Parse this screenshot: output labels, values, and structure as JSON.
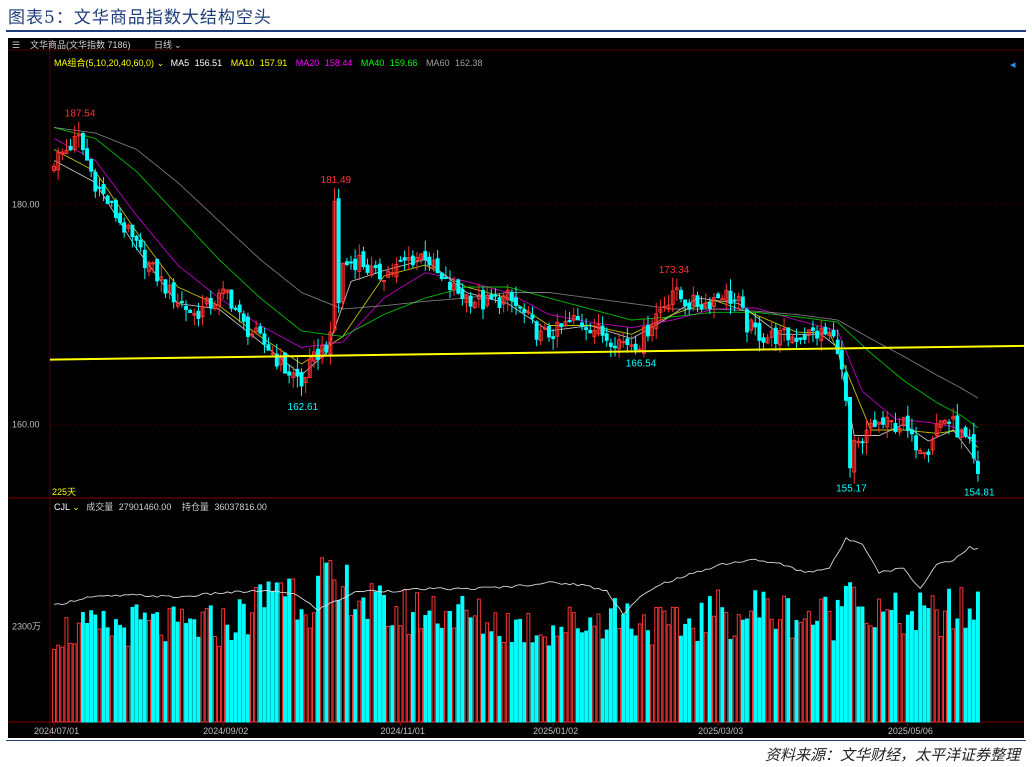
{
  "figure_title": "图表5：文华商品指数大结构空头",
  "source_note": "资料来源：文华财经，太平洋证券整理",
  "header": {
    "instrument": "文华商品(文华指数 7186)",
    "period": "日线"
  },
  "ma_legend": {
    "group_label": "MA组合(5,10,20,40,60,0)",
    "items": [
      {
        "label": "MA5",
        "value": "156.51",
        "color": "#ffffff"
      },
      {
        "label": "MA10",
        "value": "157.91",
        "color": "#ffff00"
      },
      {
        "label": "MA20",
        "value": "158.44",
        "color": "#ff00ff"
      },
      {
        "label": "MA40",
        "value": "159.66",
        "color": "#00ff00"
      },
      {
        "label": "MA60",
        "value": "162.38",
        "color": "#a0a0a0"
      }
    ]
  },
  "volume_legend": {
    "label": "CJL",
    "vol_label": "成交量",
    "vol_value": "27901460.00",
    "oi_label": "持仓量",
    "oi_value": "36037816.00"
  },
  "days_label": "225天",
  "colors": {
    "up": "#ff3232",
    "down": "#00ffff",
    "support_line": "#ffff00",
    "high_label": "#ff3232",
    "low_label": "#00ffff",
    "axis_text": "#c0c0c0"
  },
  "chart_data": [
    {
      "type": "candlestick",
      "y_ticks": [
        "180.00",
        "160.00"
      ],
      "y_tick_values": [
        180,
        160
      ],
      "ylim": [
        153.5,
        191.5
      ],
      "x_tick_labels": [
        "2024/07/01",
        "2024/09/02",
        "2024/11/01",
        "2025/01/02",
        "2025/03/03",
        "2025/05/06"
      ],
      "x_tick_index": [
        0,
        41,
        84,
        121,
        161,
        207
      ],
      "n_bars": 225,
      "annotations": [
        {
          "text": "187.54",
          "index": 6,
          "value": 187.54,
          "kind": "high"
        },
        {
          "text": "181.49",
          "index": 68,
          "value": 181.49,
          "kind": "high"
        },
        {
          "text": "173.34",
          "index": 150,
          "value": 173.34,
          "kind": "high"
        },
        {
          "text": "162.61",
          "index": 60,
          "value": 162.61,
          "kind": "low"
        },
        {
          "text": "166.54",
          "index": 142,
          "value": 166.54,
          "kind": "low"
        },
        {
          "text": "155.17",
          "index": 193,
          "value": 155.17,
          "kind": "low"
        },
        {
          "text": "154.81",
          "index": 224,
          "value": 154.81,
          "kind": "low"
        }
      ],
      "close_anchors": [
        [
          0,
          184
        ],
        [
          6,
          186
        ],
        [
          10,
          182
        ],
        [
          16,
          178.5
        ],
        [
          22,
          175
        ],
        [
          28,
          172
        ],
        [
          34,
          170
        ],
        [
          38,
          171
        ],
        [
          42,
          172
        ],
        [
          46,
          169
        ],
        [
          52,
          167
        ],
        [
          56,
          165
        ],
        [
          60,
          164
        ],
        [
          64,
          166.5
        ],
        [
          68,
          168
        ],
        [
          70,
          174.5
        ],
        [
          74,
          175
        ],
        [
          78,
          173.5
        ],
        [
          82,
          174
        ],
        [
          86,
          175
        ],
        [
          90,
          175.5
        ],
        [
          94,
          173
        ],
        [
          98,
          172
        ],
        [
          104,
          171
        ],
        [
          110,
          171.5
        ],
        [
          114,
          170
        ],
        [
          118,
          168
        ],
        [
          122,
          168.5
        ],
        [
          126,
          169.5
        ],
        [
          130,
          169
        ],
        [
          134,
          168
        ],
        [
          138,
          167.5
        ],
        [
          142,
          167.5
        ],
        [
          146,
          170
        ],
        [
          150,
          172
        ],
        [
          154,
          171
        ],
        [
          158,
          171
        ],
        [
          162,
          172
        ],
        [
          166,
          171
        ],
        [
          168,
          169
        ],
        [
          172,
          168
        ],
        [
          176,
          168
        ],
        [
          180,
          168
        ],
        [
          184,
          168.3
        ],
        [
          188,
          168.2
        ],
        [
          190,
          167.2
        ],
        [
          192,
          162
        ],
        [
          194,
          158
        ],
        [
          196,
          158
        ],
        [
          198,
          160
        ],
        [
          202,
          160
        ],
        [
          206,
          160
        ],
        [
          208,
          158.5
        ],
        [
          212,
          158
        ],
        [
          214,
          160
        ],
        [
          216,
          160.5
        ],
        [
          218,
          160
        ],
        [
          220,
          159
        ],
        [
          222,
          158
        ],
        [
          224,
          155
        ]
      ],
      "support_line": {
        "start_index": 0,
        "start_value": 165.9,
        "end_index": 224,
        "end_value": 167.1
      },
      "ma_anchors": {
        "MA5": [
          [
            0,
            184
          ],
          [
            10,
            182
          ],
          [
            20,
            176
          ],
          [
            30,
            171
          ],
          [
            40,
            170.5
          ],
          [
            50,
            167.5
          ],
          [
            60,
            164.5
          ],
          [
            66,
            166.5
          ],
          [
            72,
            173
          ],
          [
            80,
            174
          ],
          [
            90,
            175
          ],
          [
            100,
            172
          ],
          [
            110,
            171
          ],
          [
            120,
            168.5
          ],
          [
            130,
            169
          ],
          [
            140,
            167.8
          ],
          [
            148,
            169.5
          ],
          [
            156,
            171.5
          ],
          [
            166,
            171
          ],
          [
            176,
            168.2
          ],
          [
            186,
            168.2
          ],
          [
            190,
            167
          ],
          [
            194,
            159
          ],
          [
            200,
            159
          ],
          [
            206,
            160
          ],
          [
            212,
            158.5
          ],
          [
            218,
            159.5
          ],
          [
            224,
            156.5
          ]
        ],
        "MA10": [
          [
            0,
            185
          ],
          [
            10,
            183
          ],
          [
            20,
            177.5
          ],
          [
            30,
            172.5
          ],
          [
            40,
            170.8
          ],
          [
            50,
            168
          ],
          [
            60,
            165.5
          ],
          [
            70,
            168
          ],
          [
            80,
            173.5
          ],
          [
            90,
            174.5
          ],
          [
            100,
            172.5
          ],
          [
            110,
            171.5
          ],
          [
            120,
            169
          ],
          [
            130,
            169
          ],
          [
            140,
            168.2
          ],
          [
            150,
            170
          ],
          [
            160,
            171.3
          ],
          [
            170,
            170
          ],
          [
            180,
            168.4
          ],
          [
            188,
            168.3
          ],
          [
            192,
            165
          ],
          [
            198,
            159.5
          ],
          [
            206,
            159.5
          ],
          [
            214,
            159.2
          ],
          [
            220,
            159.5
          ],
          [
            224,
            157.9
          ]
        ],
        "MA20": [
          [
            0,
            186
          ],
          [
            10,
            184
          ],
          [
            20,
            179
          ],
          [
            30,
            174.5
          ],
          [
            40,
            171.5
          ],
          [
            50,
            169
          ],
          [
            60,
            167
          ],
          [
            70,
            167.5
          ],
          [
            80,
            171.5
          ],
          [
            90,
            173.8
          ],
          [
            100,
            173
          ],
          [
            110,
            172
          ],
          [
            120,
            170
          ],
          [
            130,
            169.3
          ],
          [
            140,
            168.8
          ],
          [
            150,
            169.5
          ],
          [
            160,
            170.5
          ],
          [
            170,
            170.6
          ],
          [
            180,
            169.5
          ],
          [
            190,
            168.5
          ],
          [
            196,
            163
          ],
          [
            204,
            160.5
          ],
          [
            212,
            160.2
          ],
          [
            218,
            159.8
          ],
          [
            224,
            158.4
          ]
        ],
        "MA40": [
          [
            0,
            187
          ],
          [
            10,
            186
          ],
          [
            20,
            183
          ],
          [
            30,
            179
          ],
          [
            40,
            175
          ],
          [
            50,
            171.5
          ],
          [
            60,
            168.5
          ],
          [
            70,
            168
          ],
          [
            80,
            170
          ],
          [
            90,
            171.5
          ],
          [
            100,
            172.5
          ],
          [
            110,
            172.5
          ],
          [
            120,
            171.5
          ],
          [
            130,
            170.5
          ],
          [
            140,
            169.5
          ],
          [
            150,
            169.8
          ],
          [
            160,
            170.2
          ],
          [
            170,
            170.2
          ],
          [
            180,
            169.8
          ],
          [
            190,
            169.3
          ],
          [
            198,
            166.5
          ],
          [
            206,
            164
          ],
          [
            214,
            162
          ],
          [
            220,
            160.8
          ],
          [
            224,
            159.7
          ]
        ],
        "MA60": [
          [
            0,
            187
          ],
          [
            10,
            186.5
          ],
          [
            20,
            185
          ],
          [
            30,
            182
          ],
          [
            40,
            178.5
          ],
          [
            50,
            175
          ],
          [
            60,
            172
          ],
          [
            70,
            170.5
          ],
          [
            80,
            170.8
          ],
          [
            90,
            171.2
          ],
          [
            100,
            171.5
          ],
          [
            110,
            172
          ],
          [
            120,
            172
          ],
          [
            130,
            171.5
          ],
          [
            140,
            171
          ],
          [
            150,
            170.5
          ],
          [
            160,
            170.5
          ],
          [
            170,
            170.3
          ],
          [
            180,
            170
          ],
          [
            190,
            169.5
          ],
          [
            198,
            167.8
          ],
          [
            206,
            166.2
          ],
          [
            214,
            164.5
          ],
          [
            220,
            163.3
          ],
          [
            224,
            162.4
          ]
        ]
      }
    },
    {
      "type": "bar",
      "series": [
        {
          "name": "成交量"
        },
        {
          "name": "持仓量"
        }
      ],
      "y_ticks": [
        "2300万"
      ],
      "y_tick_values": [
        2300
      ],
      "ylim": [
        0,
        5000
      ],
      "volume_anchors": [
        [
          0,
          2250
        ],
        [
          10,
          2250
        ],
        [
          20,
          2400
        ],
        [
          30,
          2300
        ],
        [
          36,
          2400
        ],
        [
          40,
          2350
        ],
        [
          46,
          2600
        ],
        [
          52,
          3100
        ],
        [
          54,
          3600
        ],
        [
          56,
          3400
        ],
        [
          62,
          3000
        ],
        [
          66,
          3600
        ],
        [
          68,
          2900
        ],
        [
          72,
          3400
        ],
        [
          76,
          2900
        ],
        [
          80,
          2700
        ],
        [
          86,
          2700
        ],
        [
          94,
          2800
        ],
        [
          100,
          2600
        ],
        [
          110,
          2400
        ],
        [
          120,
          2300
        ],
        [
          130,
          2500
        ],
        [
          136,
          2700
        ],
        [
          146,
          2400
        ],
        [
          150,
          2300
        ],
        [
          156,
          2500
        ],
        [
          160,
          2700
        ],
        [
          166,
          2600
        ],
        [
          170,
          2800
        ],
        [
          176,
          2700
        ],
        [
          182,
          2600
        ],
        [
          190,
          2600
        ],
        [
          192,
          3300
        ],
        [
          194,
          4300
        ],
        [
          196,
          2700
        ],
        [
          200,
          2600
        ],
        [
          206,
          2600
        ],
        [
          210,
          2600
        ],
        [
          214,
          2600
        ],
        [
          218,
          2700
        ],
        [
          222,
          2700
        ],
        [
          224,
          2900
        ]
      ],
      "oi_anchors": [
        [
          0,
          2800
        ],
        [
          8,
          3000
        ],
        [
          20,
          3050
        ],
        [
          30,
          3000
        ],
        [
          40,
          3100
        ],
        [
          50,
          3150
        ],
        [
          58,
          3100
        ],
        [
          64,
          2700
        ],
        [
          68,
          2900
        ],
        [
          74,
          3150
        ],
        [
          82,
          3150
        ],
        [
          90,
          3200
        ],
        [
          100,
          3200
        ],
        [
          110,
          3250
        ],
        [
          120,
          3350
        ],
        [
          128,
          3300
        ],
        [
          134,
          3150
        ],
        [
          138,
          2600
        ],
        [
          142,
          3000
        ],
        [
          148,
          3350
        ],
        [
          156,
          3600
        ],
        [
          162,
          3800
        ],
        [
          170,
          3900
        ],
        [
          176,
          3800
        ],
        [
          182,
          3600
        ],
        [
          188,
          3700
        ],
        [
          192,
          4400
        ],
        [
          196,
          4300
        ],
        [
          200,
          3600
        ],
        [
          206,
          3700
        ],
        [
          210,
          3200
        ],
        [
          214,
          3800
        ],
        [
          218,
          3900
        ],
        [
          222,
          4200
        ],
        [
          224,
          4150
        ]
      ]
    }
  ]
}
